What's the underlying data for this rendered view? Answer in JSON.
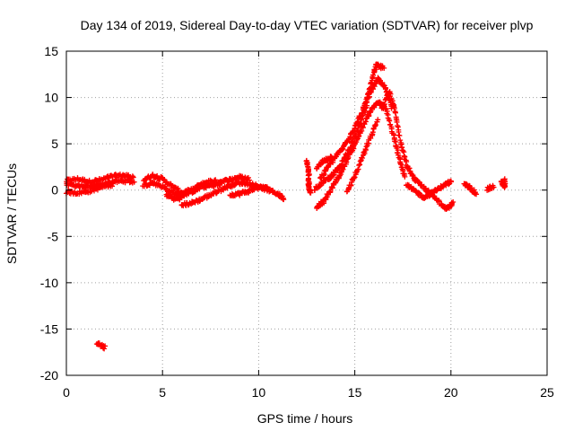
{
  "chart_data": {
    "type": "scatter",
    "title": "Day 134 of 2019, Sidereal Day-to-day VTEC variation (SDTVAR) for receiver plvp",
    "xlabel": "GPS time / hours",
    "ylabel": "SDTVAR / TECUs",
    "xlim": [
      0,
      25
    ],
    "ylim": [
      -20,
      15
    ],
    "xticks": [
      0,
      5,
      10,
      15,
      20,
      25
    ],
    "yticks": [
      -20,
      -15,
      -10,
      -5,
      0,
      5,
      10,
      15
    ],
    "grid": true,
    "marker": "plus",
    "color": "#ff0000",
    "series": [
      {
        "name": "plvp",
        "segments": [
          [
            [
              0.0,
              1.0
            ],
            [
              0.6,
              1.2
            ],
            [
              1.2,
              0.9
            ],
            [
              1.8,
              1.1
            ],
            [
              2.4,
              1.5
            ],
            [
              3.0,
              1.6
            ],
            [
              3.5,
              1.4
            ]
          ],
          [
            [
              0.0,
              0.6
            ],
            [
              0.6,
              0.5
            ],
            [
              1.2,
              0.3
            ],
            [
              1.8,
              0.6
            ],
            [
              2.4,
              0.9
            ],
            [
              3.0,
              1.0
            ],
            [
              3.5,
              0.9
            ]
          ],
          [
            [
              0.0,
              -0.2
            ],
            [
              0.6,
              -0.3
            ],
            [
              1.2,
              -0.1
            ],
            [
              1.8,
              0.3
            ],
            [
              2.4,
              0.6
            ]
          ],
          [
            [
              4.0,
              1.1
            ],
            [
              4.5,
              1.6
            ],
            [
              5.0,
              1.2
            ],
            [
              5.5,
              0.4
            ],
            [
              6.0,
              -0.3
            ],
            [
              6.5,
              0.0
            ],
            [
              7.0,
              0.6
            ],
            [
              7.5,
              1.0
            ],
            [
              8.0,
              0.9
            ],
            [
              8.5,
              1.1
            ],
            [
              9.0,
              1.4
            ],
            [
              9.5,
              1.2
            ]
          ],
          [
            [
              4.0,
              0.5
            ],
            [
              4.5,
              0.8
            ],
            [
              5.0,
              0.4
            ],
            [
              5.5,
              -0.3
            ],
            [
              6.0,
              -0.6
            ],
            [
              6.5,
              -0.2
            ],
            [
              7.0,
              0.3
            ],
            [
              7.5,
              0.5
            ],
            [
              8.0,
              0.6
            ]
          ],
          [
            [
              5.2,
              -0.5
            ],
            [
              5.6,
              -0.9
            ],
            [
              6.0,
              -0.9
            ]
          ],
          [
            [
              6.0,
              -1.6
            ],
            [
              6.5,
              -1.4
            ],
            [
              7.0,
              -1.0
            ],
            [
              7.5,
              -0.5
            ],
            [
              8.0,
              0.0
            ],
            [
              8.5,
              0.5
            ],
            [
              9.0,
              0.8
            ],
            [
              9.5,
              0.7
            ],
            [
              10.0,
              0.4
            ],
            [
              10.5,
              0.0
            ],
            [
              11.0,
              -0.4
            ],
            [
              11.3,
              -0.9
            ]
          ],
          [
            [
              8.5,
              -0.5
            ],
            [
              9.0,
              -0.4
            ],
            [
              9.5,
              -0.1
            ],
            [
              10.0,
              0.3
            ],
            [
              10.5,
              0.2
            ]
          ],
          [
            [
              12.5,
              3.2
            ],
            [
              12.6,
              2.0
            ],
            [
              12.6,
              0.5
            ],
            [
              12.7,
              -0.3
            ]
          ],
          [
            [
              13.0,
              -1.8
            ],
            [
              13.4,
              -1.2
            ],
            [
              13.8,
              0.2
            ],
            [
              14.2,
              1.6
            ],
            [
              14.6,
              3.2
            ],
            [
              15.0,
              5.0
            ],
            [
              15.4,
              6.8
            ],
            [
              15.8,
              8.5
            ],
            [
              16.2,
              9.5
            ],
            [
              16.6,
              8.8
            ],
            [
              17.0,
              6.0
            ],
            [
              17.3,
              3.5
            ],
            [
              17.6,
              1.5
            ]
          ],
          [
            [
              13.2,
              1.2
            ],
            [
              13.6,
              2.5
            ],
            [
              14.0,
              3.6
            ],
            [
              14.4,
              4.6
            ],
            [
              14.8,
              6.0
            ],
            [
              15.2,
              7.6
            ],
            [
              15.6,
              9.6
            ],
            [
              15.9,
              11.8
            ],
            [
              16.1,
              13.5
            ],
            [
              16.5,
              13.2
            ]
          ],
          [
            [
              12.9,
              0.1
            ],
            [
              13.4,
              0.9
            ],
            [
              13.8,
              1.5
            ],
            [
              14.2,
              2.5
            ],
            [
              14.6,
              4.0
            ],
            [
              15.0,
              5.8
            ],
            [
              15.4,
              8.0
            ],
            [
              15.8,
              10.5
            ],
            [
              16.2,
              12.0
            ],
            [
              16.6,
              11.0
            ],
            [
              16.9,
              9.0
            ]
          ],
          [
            [
              13.0,
              2.4
            ],
            [
              13.4,
              3.2
            ],
            [
              13.8,
              3.6
            ]
          ],
          [
            [
              14.6,
              -0.1
            ],
            [
              15.0,
              1.5
            ],
            [
              15.4,
              3.6
            ],
            [
              15.8,
              5.6
            ],
            [
              16.2,
              7.6
            ]
          ],
          [
            [
              16.4,
              8.8
            ],
            [
              16.8,
              10.6
            ],
            [
              17.1,
              8.5
            ],
            [
              17.4,
              5.0
            ],
            [
              17.7,
              2.6
            ],
            [
              18.1,
              1.2
            ],
            [
              18.5,
              0.4
            ],
            [
              19.0,
              -0.5
            ],
            [
              19.5,
              -1.5
            ],
            [
              19.8,
              -2.0
            ],
            [
              20.1,
              -1.4
            ]
          ],
          [
            [
              17.7,
              0.5
            ],
            [
              18.2,
              -0.2
            ],
            [
              18.6,
              -0.8
            ],
            [
              19.1,
              -0.2
            ],
            [
              19.6,
              0.5
            ],
            [
              20.0,
              0.9
            ]
          ],
          [
            [
              20.7,
              0.6
            ],
            [
              21.0,
              0.3
            ],
            [
              21.3,
              -0.4
            ]
          ],
          [
            [
              21.9,
              0.1
            ],
            [
              22.2,
              0.4
            ]
          ],
          [
            [
              22.6,
              0.9
            ],
            [
              22.8,
              0.3
            ],
            [
              22.8,
              1.1
            ]
          ],
          [
            [
              1.6,
              -16.5
            ],
            [
              2.0,
              -17.0
            ]
          ]
        ]
      }
    ]
  }
}
